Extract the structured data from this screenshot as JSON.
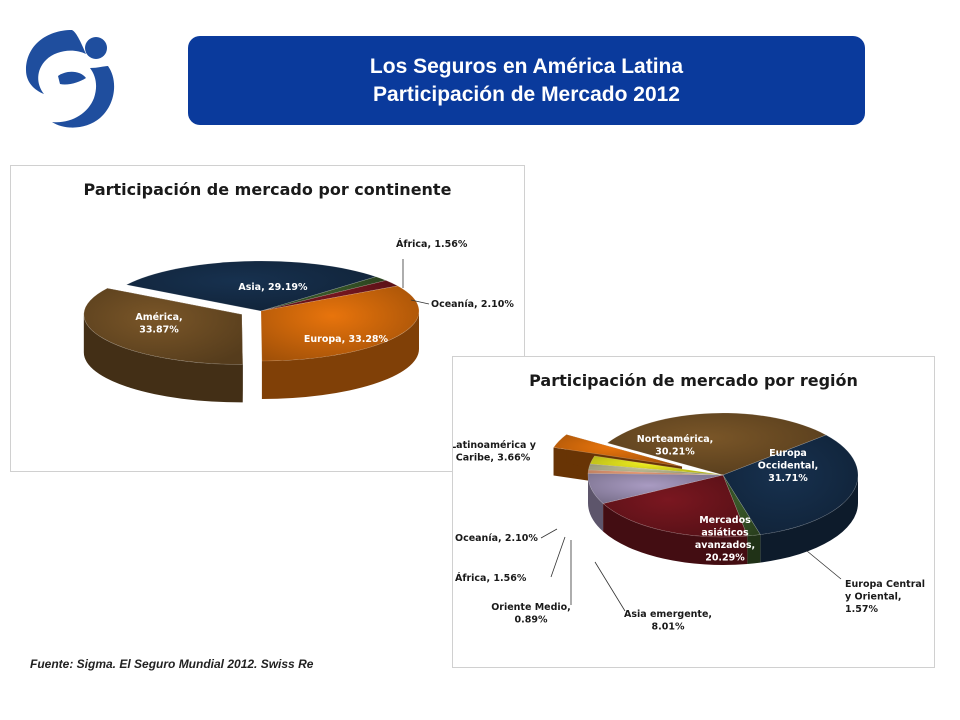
{
  "header": {
    "title_line1": "Los Seguros en América Latina",
    "title_line2": "Participación de Mercado 2012"
  },
  "logo": {
    "icon": "company-logo-icon",
    "color": "#1f4e9e"
  },
  "chart_data": [
    {
      "type": "pie",
      "title": "Participación de mercado por continente",
      "slices": [
        {
          "name": "Asia",
          "value": 29.19,
          "label": "Asia, 29.19%",
          "color": "#17314f"
        },
        {
          "name": "África",
          "value": 1.56,
          "label": "África, 1.56%",
          "color": "#3a5a2a"
        },
        {
          "name": "Oceanía",
          "value": 2.1,
          "label": "Oceanía, 2.10%",
          "color": "#7a1720"
        },
        {
          "name": "Europa",
          "value": 33.28,
          "label": "Europa, 33.28%",
          "color": "#e8740c"
        },
        {
          "name": "América",
          "value": 33.87,
          "label": "América,",
          "label2": "33.87%",
          "color": "#7a5628"
        }
      ]
    },
    {
      "type": "pie",
      "title": "Participación de mercado por región",
      "slices": [
        {
          "name": "Norteamérica",
          "value": 30.21,
          "label": "Norteamérica,",
          "label2": "30.21%",
          "color": "#7a5628"
        },
        {
          "name": "Europa Occidental",
          "value": 31.71,
          "label": "Europa",
          "label2": "Occidental,",
          "label3": "31.71%",
          "color": "#17314f"
        },
        {
          "name": "Europa Central y Oriental",
          "value": 1.57,
          "label": "Europa Central",
          "label2": "y Oriental,",
          "label3": "1.57%",
          "color": "#3a5a2a"
        },
        {
          "name": "Mercados asiáticos avanzados",
          "value": 20.29,
          "label": "Mercados",
          "label2": "asiáticos",
          "label3": "avanzados,",
          "label4": "20.29%",
          "color": "#7a1720"
        },
        {
          "name": "Asia emergente",
          "value": 8.01,
          "label": "Asia emergente,",
          "label2": "8.01%",
          "color": "#a99bc2"
        },
        {
          "name": "Oriente Medio",
          "value": 0.89,
          "label": "Oriente Medio,",
          "label2": "0.89%",
          "color": "#f2a27a"
        },
        {
          "name": "África",
          "value": 1.56,
          "label": "África, 1.56%",
          "color": "#c4c49a"
        },
        {
          "name": "Oceanía",
          "value": 2.1,
          "label": "Oceanía, 2.10%",
          "color": "#f0f020"
        },
        {
          "name": "Latinoamérica y Caribe",
          "value": 3.66,
          "label": "Latinoamérica y",
          "label2": "Caribe, 3.66%",
          "color": "#e8740c"
        }
      ]
    }
  ],
  "footer": {
    "source": "Fuente: Sigma. El Seguro Mundial 2012. Swiss Re"
  }
}
